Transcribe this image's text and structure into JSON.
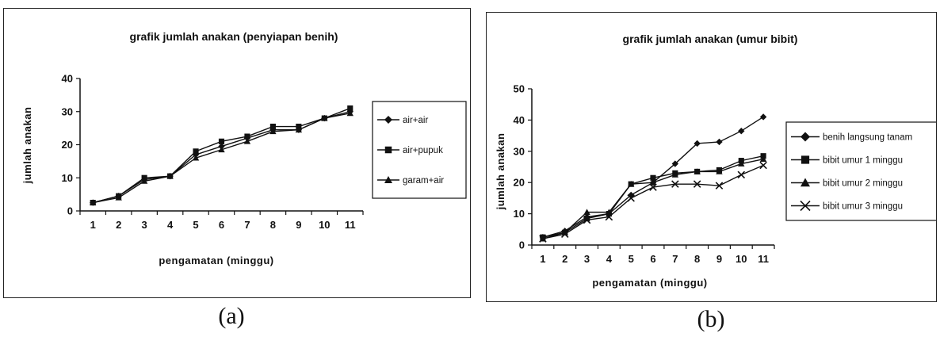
{
  "chart_data": [
    {
      "type": "line",
      "title": "grafik jumlah anakan (penyiapan benih)",
      "xlabel": "pengamatan (minggu)",
      "ylabel": "jumlah anakan",
      "categories": [
        "1",
        "2",
        "3",
        "4",
        "5",
        "6",
        "7",
        "8",
        "9",
        "10",
        "11"
      ],
      "ylim": [
        0,
        40
      ],
      "yticks": [
        "0",
        "10",
        "20",
        "30",
        "40"
      ],
      "grid": false,
      "legend_position": "right",
      "series": [
        {
          "name": "air+air",
          "marker": "diamond",
          "values": [
            2.5,
            4.5,
            9.5,
            10.5,
            17,
            19.5,
            22,
            24.5,
            24.5,
            28,
            30
          ]
        },
        {
          "name": "air+pupuk",
          "marker": "square",
          "values": [
            2.5,
            4.5,
            10,
            10.5,
            18,
            21,
            22.5,
            25.5,
            25.5,
            28,
            31
          ]
        },
        {
          "name": "garam+air",
          "marker": "triangle",
          "values": [
            2.5,
            4,
            9,
            10.5,
            16,
            18.5,
            21,
            24,
            24.5,
            28,
            29.5
          ]
        }
      ],
      "caption": "(a)"
    },
    {
      "type": "line",
      "title": "grafik jumlah anakan (umur bibit)",
      "xlabel": "pengamatan (minggu)",
      "ylabel": "jumlah anakan",
      "categories": [
        "1",
        "2",
        "3",
        "4",
        "5",
        "6",
        "7",
        "8",
        "9",
        "10",
        "11"
      ],
      "ylim": [
        0,
        50
      ],
      "yticks": [
        "0",
        "10",
        "20",
        "30",
        "40",
        "50"
      ],
      "grid": false,
      "legend_position": "right",
      "series": [
        {
          "name": "benih langsung tanam",
          "marker": "diamond",
          "values": [
            2.5,
            4.5,
            9,
            10,
            16,
            20,
            26,
            32.5,
            33,
            36.5,
            41
          ]
        },
        {
          "name": "bibit umur 1 minggu",
          "marker": "square",
          "values": [
            2.5,
            4,
            8.5,
            10,
            19.5,
            21.5,
            23,
            23.5,
            24,
            27,
            28.5
          ]
        },
        {
          "name": "bibit umur 2 minggu",
          "marker": "triangle",
          "values": [
            2,
            4,
            10.5,
            10.5,
            19.5,
            20,
            22.5,
            23.5,
            23.5,
            26,
            27.5
          ]
        },
        {
          "name": "bibit umur 3 minggu",
          "marker": "x",
          "values": [
            2,
            3.5,
            8,
            9,
            15,
            18.5,
            19.5,
            19.5,
            19,
            22.5,
            25.5
          ]
        }
      ],
      "caption": "(b)"
    }
  ]
}
